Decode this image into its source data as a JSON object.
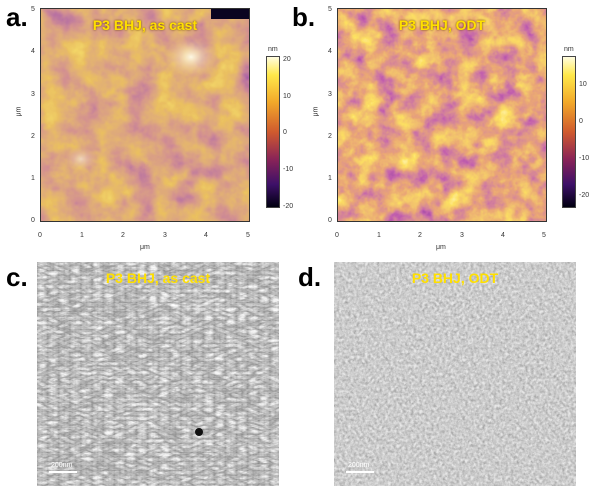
{
  "panels": {
    "a": {
      "letter": "a.",
      "title": "P3 BHJ, as cast",
      "x_ticks": [
        "0",
        "1",
        "2",
        "3",
        "4",
        "5"
      ],
      "y_ticks": [
        "0",
        "1",
        "2",
        "3",
        "4",
        "5"
      ],
      "x_unit": "μm",
      "y_unit": "μm",
      "colorbar": {
        "unit": "nm",
        "ticks": [
          "20",
          "10",
          "0",
          "-10",
          "-20"
        ],
        "range_nm": [
          -20,
          20
        ]
      }
    },
    "b": {
      "letter": "b.",
      "title": "P3 BHJ, ODT",
      "x_ticks": [
        "0",
        "1",
        "2",
        "3",
        "4",
        "5"
      ],
      "y_ticks": [
        "0",
        "1",
        "2",
        "3",
        "4",
        "5"
      ],
      "x_unit": "μm",
      "y_unit": "μm",
      "colorbar": {
        "unit": "nm",
        "ticks": [
          "10",
          "0",
          "-10",
          "-20"
        ],
        "range_nm": [
          -25,
          20
        ]
      }
    },
    "c": {
      "letter": "c.",
      "title": "P3 BHJ, as cast",
      "scale_bar": "200nm"
    },
    "d": {
      "letter": "d.",
      "title": "P3 BHJ, ODT",
      "scale_bar": "200nm"
    }
  },
  "colors": {
    "afm_bright": "#fff8c0",
    "afm_mid": "#c86a28",
    "afm_dark": "#2a0a4a",
    "title_yellow": "#ffe000"
  }
}
